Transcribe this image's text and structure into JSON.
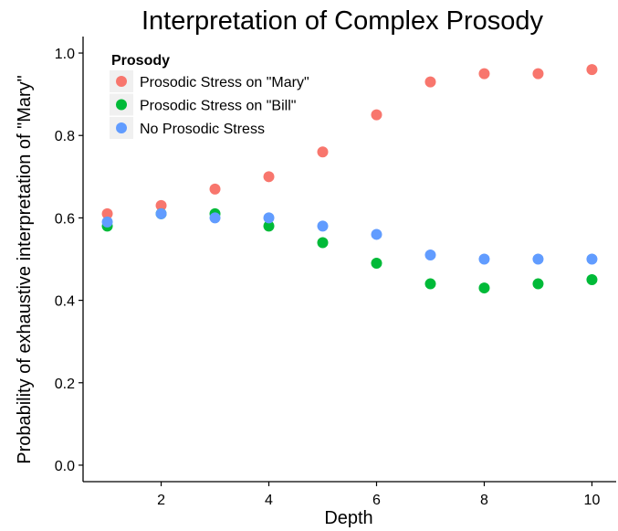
{
  "chart_data": {
    "type": "scatter",
    "title": "Interpretation of Complex Prosody",
    "xlabel": "Depth",
    "ylabel": "Probability of exhaustive interpretation of \"Mary\"",
    "xlim": [
      0.55,
      10.45
    ],
    "ylim": [
      -0.04,
      1.04
    ],
    "x_ticks": [
      2,
      4,
      6,
      8,
      10
    ],
    "y_ticks": [
      0.0,
      0.2,
      0.4,
      0.6,
      0.8,
      1.0
    ],
    "y_tick_labels": [
      "0.0",
      "0.2",
      "0.4",
      "0.6",
      "0.8",
      "1.0"
    ],
    "grid": false,
    "legend": {
      "title": "Prosody",
      "placement": "top-left"
    },
    "x": [
      1,
      2,
      3,
      4,
      5,
      6,
      7,
      8,
      9,
      10
    ],
    "series": [
      {
        "name": "Prosodic Stress on \"Mary\"",
        "color": "#f8766d",
        "values": [
          0.61,
          0.63,
          0.67,
          0.7,
          0.76,
          0.85,
          0.93,
          0.95,
          0.95,
          0.96
        ]
      },
      {
        "name": "Prosodic Stress on \"Bill\"",
        "color": "#00ba38",
        "values": [
          0.58,
          0.61,
          0.61,
          0.58,
          0.54,
          0.49,
          0.44,
          0.43,
          0.44,
          0.45
        ]
      },
      {
        "name": "No Prosodic Stress",
        "color": "#619cff",
        "values": [
          0.59,
          0.61,
          0.6,
          0.6,
          0.58,
          0.56,
          0.51,
          0.5,
          0.5,
          0.5
        ]
      }
    ]
  }
}
